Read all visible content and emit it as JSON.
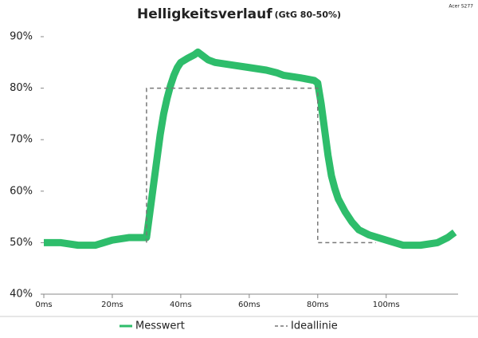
{
  "chart_data": {
    "type": "line",
    "title": "Helligkeitsverlauf",
    "subtitle": "(GtG 80-50%)",
    "corner_note": "Acer S277",
    "xlim": [
      0,
      121
    ],
    "ylim": [
      40,
      90
    ],
    "xticks": [
      {
        "value": 0,
        "label": "0ms"
      },
      {
        "value": 20,
        "label": "20ms"
      },
      {
        "value": 40,
        "label": "40ms"
      },
      {
        "value": 60,
        "label": "60ms"
      },
      {
        "value": 80,
        "label": "80ms"
      },
      {
        "value": 100,
        "label": "100ms"
      }
    ],
    "yticks": [
      {
        "value": 40,
        "label": "40%"
      },
      {
        "value": 50,
        "label": "50%"
      },
      {
        "value": 60,
        "label": "60%"
      },
      {
        "value": 70,
        "label": "70%"
      },
      {
        "value": 80,
        "label": "80%"
      },
      {
        "value": 90,
        "label": "90%"
      }
    ],
    "legend": "bottom",
    "series": [
      {
        "name": "Messwert",
        "color": "#2ebd6b",
        "dash": false,
        "x": [
          0,
          5,
          10,
          15,
          20,
          25,
          30,
          31,
          32,
          33,
          34,
          35,
          36,
          37,
          38,
          39,
          40,
          42,
          44,
          45,
          46,
          48,
          50,
          55,
          60,
          65,
          68,
          70,
          75,
          79,
          80,
          81,
          82,
          83,
          84,
          85,
          86,
          88,
          90,
          92,
          95,
          100,
          105,
          110,
          115,
          118,
          120
        ],
        "values": [
          50,
          50,
          49.5,
          49.5,
          50.5,
          51,
          51,
          56,
          61,
          66,
          71,
          75,
          78,
          80.5,
          82.5,
          84,
          85,
          85.8,
          86.5,
          87,
          86.5,
          85.5,
          85,
          84.5,
          84,
          83.5,
          83,
          82.5,
          82,
          81.5,
          81,
          77,
          72,
          67,
          63,
          60.5,
          58.5,
          56,
          54,
          52.5,
          51.5,
          50.5,
          49.5,
          49.5,
          50,
          51,
          52
        ]
      },
      {
        "name": "Ideallinie",
        "color": "#777777",
        "dash": true,
        "x": [
          30,
          30,
          80,
          80,
          97
        ],
        "values": [
          50,
          80,
          80,
          50,
          50
        ]
      }
    ]
  }
}
